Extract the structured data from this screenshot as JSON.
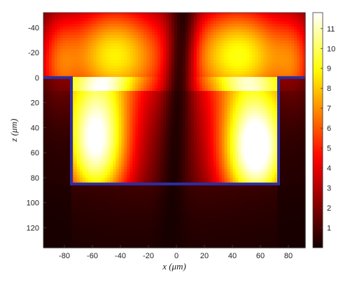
{
  "chart_data": {
    "type": "heatmap",
    "xlabel": "x (μm)",
    "ylabel": "z (μm)",
    "xlim": [
      -95,
      92
    ],
    "ylim": [
      -52,
      136
    ],
    "y_inverted": true,
    "x_ticks": [
      -80,
      -60,
      -40,
      -20,
      0,
      20,
      40,
      60,
      80
    ],
    "y_ticks": [
      -40,
      -20,
      0,
      20,
      40,
      60,
      80,
      100,
      120
    ],
    "colorbar": {
      "min": 0,
      "max": 11.8,
      "ticks": [
        1,
        2,
        3,
        4,
        5,
        6,
        7,
        8,
        9,
        10,
        11
      ],
      "colormap": "hot"
    },
    "outline": {
      "color": "#2e2ea0",
      "points": [
        [
          -95,
          0
        ],
        [
          -75,
          0
        ],
        [
          -75,
          85
        ],
        [
          73,
          85
        ],
        [
          73,
          0
        ],
        [
          92,
          0
        ]
      ]
    },
    "field_lobes": [
      {
        "x": -58,
        "z": 50,
        "peak": 10.5
      },
      {
        "x": 58,
        "z": 55,
        "peak": 11.5
      },
      {
        "x": -45,
        "z": -15,
        "peak": 7.0
      },
      {
        "x": 45,
        "z": -15,
        "peak": 7.5
      }
    ]
  }
}
